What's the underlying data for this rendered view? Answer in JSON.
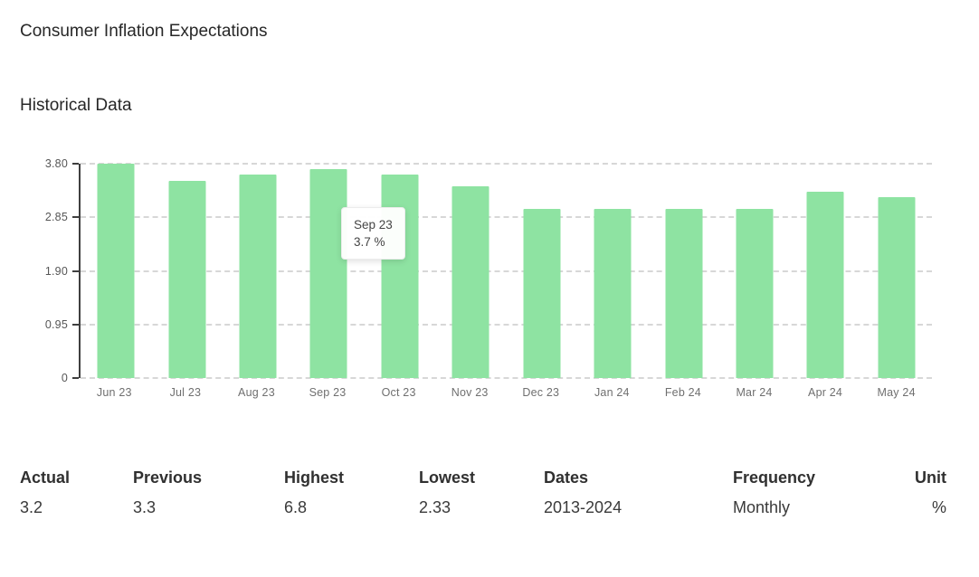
{
  "header": {
    "title": "Consumer Inflation Expectations",
    "section_title": "Historical Data"
  },
  "chart_data": {
    "type": "bar",
    "title": "Historical Data",
    "categories": [
      "Jun 23",
      "Jul 23",
      "Aug 23",
      "Sep 23",
      "Oct 23",
      "Nov 23",
      "Dec 23",
      "Jan 24",
      "Feb 24",
      "Mar 24",
      "Apr 24",
      "May 24"
    ],
    "values": [
      3.8,
      3.5,
      3.6,
      3.7,
      3.6,
      3.4,
      3.0,
      3.0,
      3.0,
      3.0,
      3.3,
      3.2
    ],
    "unit": "%",
    "ylim": [
      0,
      3.8
    ],
    "yticks": [
      "3.80",
      "2.85",
      "1.90",
      "0.95",
      "0"
    ],
    "grid": "horizontal-dashed",
    "legend": "none",
    "bar_color": "#8ee3a2",
    "tooltip": {
      "label": "Sep 23",
      "value": "3.7 %",
      "index": 3
    }
  },
  "summary": {
    "columns": [
      {
        "label": "Actual",
        "value": "3.2"
      },
      {
        "label": "Previous",
        "value": "3.3"
      },
      {
        "label": "Highest",
        "value": "6.8"
      },
      {
        "label": "Lowest",
        "value": "2.33"
      },
      {
        "label": "Dates",
        "value": "2013-2024"
      },
      {
        "label": "Frequency",
        "value": "Monthly"
      },
      {
        "label": "Unit",
        "value": "%"
      }
    ]
  }
}
